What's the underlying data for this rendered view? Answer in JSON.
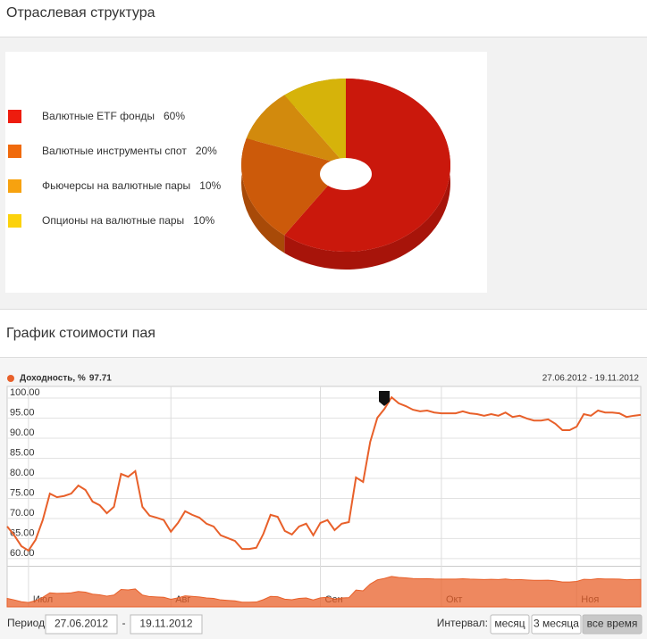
{
  "header": {
    "sector_title": "Отраслевая структура",
    "price_title": "График стоимости пая"
  },
  "chart_data": [
    {
      "type": "pie",
      "categories": [
        "Валютные ETF фонды",
        "Валютные инструменты спот",
        "Фьючерсы на валютные пары",
        "Опционы на валютные пары"
      ],
      "values": [
        60,
        20,
        10,
        10
      ],
      "value_labels": [
        "60%",
        "20%",
        "10%",
        "10%"
      ],
      "colors": [
        "#ee1c0e",
        "#f06a0c",
        "#f7a20f",
        "#fcd20c"
      ]
    },
    {
      "type": "line",
      "legend_value": 97.71,
      "date_range": "27.06.2012 - 19.11.2012",
      "categories": [
        null,
        null,
        null,
        "Июл",
        null,
        null,
        null,
        null,
        null,
        null,
        null,
        null,
        null,
        null,
        null,
        null,
        null,
        null,
        null,
        null,
        null,
        null,
        null,
        "Авг",
        null,
        null,
        null,
        null,
        null,
        null,
        null,
        null,
        null,
        null,
        null,
        null,
        null,
        null,
        null,
        null,
        null,
        null,
        null,
        null,
        "Сен",
        null,
        null,
        null,
        null,
        null,
        null,
        null,
        null,
        null,
        null,
        null,
        null,
        null,
        null,
        null,
        null,
        "Окт",
        null,
        null,
        null,
        null,
        null,
        null,
        null,
        null,
        null,
        null,
        null,
        null,
        null,
        null,
        null,
        null,
        null,
        null,
        "Ноя",
        null,
        null,
        null,
        null,
        null,
        null,
        null,
        null,
        null
      ],
      "series": [
        {
          "name": "Доходность, %",
          "color": "#e8602a",
          "values": [
            68,
            65.8,
            63.1,
            62,
            64.7,
            69.6,
            76.2,
            75.3,
            75.6,
            76.2,
            78.2,
            77.1,
            74.2,
            73.3,
            71.3,
            72.9,
            81.1,
            80.4,
            81.8,
            72.9,
            70.7,
            70.2,
            69.6,
            66.7,
            68.9,
            71.8,
            70.9,
            70.2,
            68.7,
            68,
            65.8,
            65.1,
            64.4,
            62.4,
            62.4,
            62.7,
            66.2,
            70.9,
            70.4,
            66.9,
            66,
            68,
            68.7,
            65.8,
            68.9,
            69.6,
            67.1,
            68.7,
            69.1,
            80.2,
            79.1,
            89.1,
            95.1,
            97.3,
            100.2,
            98.7,
            98,
            97.1,
            96.7,
            96.9,
            96.4,
            96.2,
            96.2,
            96.2,
            96.7,
            96.2,
            96,
            95.6,
            96,
            95.6,
            96.4,
            95.3,
            95.6,
            94.9,
            94.4,
            94.4,
            94.7,
            93.6,
            92,
            92,
            92.9,
            96,
            95.6,
            96.9,
            96.4,
            96.4,
            96.2,
            95.3,
            95.6,
            95.8
          ]
        }
      ],
      "ylim": [
        58.2,
        102.9
      ],
      "yticks": [
        {
          "value": 60,
          "label": "60.00"
        },
        {
          "value": 65,
          "label": "65.00"
        },
        {
          "value": 70,
          "label": "70.00"
        },
        {
          "value": 75,
          "label": "75.00"
        },
        {
          "value": 80,
          "label": "80.00"
        },
        {
          "value": 85,
          "label": "85.00"
        },
        {
          "value": 90,
          "label": "90.00"
        },
        {
          "value": 95,
          "label": "95.00"
        },
        {
          "value": 100,
          "label": "100.00"
        }
      ],
      "grid": true
    }
  ],
  "controls": {
    "period_label": "Период:",
    "date_from": "27.06.2012",
    "date_separator": "-",
    "date_to": "19.11.2012",
    "interval_label": "Интервал:",
    "intervals": [
      "месяц",
      "3 месяца",
      "все время"
    ],
    "active_interval": 2
  }
}
